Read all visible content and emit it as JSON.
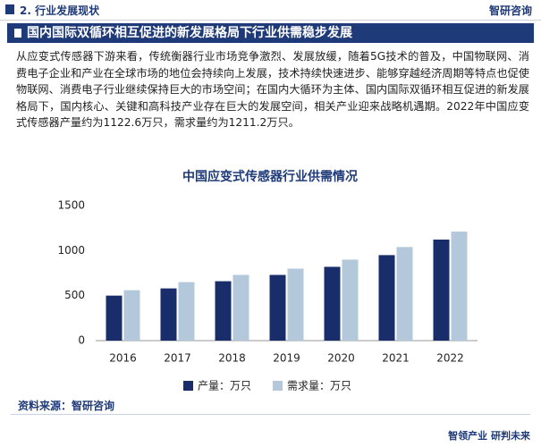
{
  "header": {
    "title": "2. 行业发展现状",
    "logo": "智研咨询"
  },
  "banner": "国内国际双循环相互促进的新发展格局下行业供需稳步发展",
  "paragraph": "从应变式传感器下游来看，传统衡器行业市场竞争激烈、发展放缓，随着5G技术的普及，中国物联网、消费电子企业和产业在全球市场的地位会持续向上发展，技术持续快速进步、能够穿越经济周期等特点也促使物联网、消费电子行业继续保持巨大的市场空间；在国内大循环为主体、国内国际双循环相互促进的新发展格局下，国内核心、关键和高科技产业存在巨大的发展空间，相关产业迎来战略机遇期。2022年中国应变式传感器产量约为1122.6万只，需求量约为1211.2万只。",
  "chart_data": {
    "type": "bar",
    "title": "中国应变式传感器行业供需情况",
    "categories": [
      "2016",
      "2017",
      "2018",
      "2019",
      "2020",
      "2021",
      "2022"
    ],
    "series": [
      {
        "name": "产量：万只",
        "color": "#1a2d6b",
        "values": [
          500,
          580,
          660,
          730,
          820,
          950,
          1122.6
        ]
      },
      {
        "name": "需求量：万只",
        "color": "#b4c8dc",
        "values": [
          560,
          650,
          730,
          800,
          900,
          1040,
          1211.2
        ]
      }
    ],
    "ylim": [
      0,
      1500
    ],
    "yticks": [
      0,
      500,
      1000,
      1500
    ],
    "grid": false,
    "legend": "bottom"
  },
  "footer": {
    "source": "资料来源：智研咨询",
    "slogan": "智领产业 研判未来"
  }
}
